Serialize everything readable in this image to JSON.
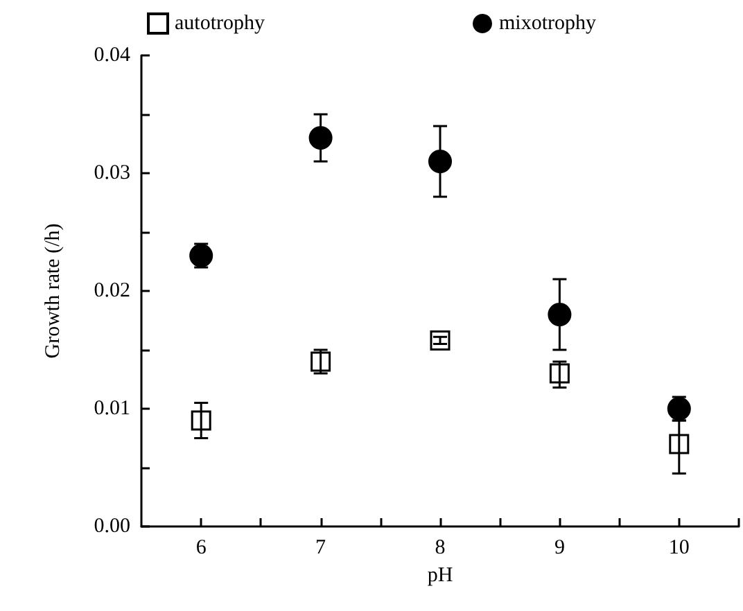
{
  "chart_data": {
    "type": "scatter",
    "xlabel": "pH",
    "ylabel": "Growth rate (/h)",
    "x": [
      6,
      7,
      8,
      9,
      10
    ],
    "series": [
      {
        "name": "autotrophy",
        "color": "#000000",
        "marker": "square",
        "values": [
          0.009,
          0.014,
          0.0158,
          0.013,
          0.007
        ],
        "errors": [
          [
            0.0075,
            0.0105
          ],
          [
            0.013,
            0.015
          ],
          [
            0.0155,
            0.0161
          ],
          [
            0.0118,
            0.014
          ],
          [
            0.0045,
            0.009
          ]
        ]
      },
      {
        "name": "mixotrophy",
        "color": "#000000",
        "marker": "circle",
        "values": [
          0.023,
          0.033,
          0.031,
          0.018,
          0.01
        ],
        "errors": [
          [
            0.022,
            0.024
          ],
          [
            0.031,
            0.035
          ],
          [
            0.028,
            0.034
          ],
          [
            0.015,
            0.021
          ],
          [
            0.009,
            0.011
          ]
        ]
      }
    ],
    "xlim": [
      5.5,
      10.5
    ],
    "xticks": [
      6,
      {
        "value": 6.5,
        "label": null
      },
      7,
      {
        "value": 7.5,
        "label": null
      },
      8,
      {
        "value": 8.5,
        "label": null
      },
      9,
      {
        "value": 9.5,
        "label": null
      },
      10,
      {
        "value": 10.5,
        "label": null
      }
    ],
    "ylim": [
      0,
      0.04
    ],
    "yticks": [
      {
        "value": 0,
        "label": "0.00"
      },
      {
        "value": 0.005,
        "label": null
      },
      {
        "value": 0.01,
        "label": "0.01"
      },
      {
        "value": 0.015,
        "label": null
      },
      {
        "value": 0.02,
        "label": "0.02"
      },
      {
        "value": 0.025,
        "label": null
      },
      {
        "value": 0.03,
        "label": "0.03"
      },
      {
        "value": 0.035,
        "label": null
      },
      {
        "value": 0.04,
        "label": "0.04"
      }
    ],
    "grid": false,
    "legend": "top"
  }
}
